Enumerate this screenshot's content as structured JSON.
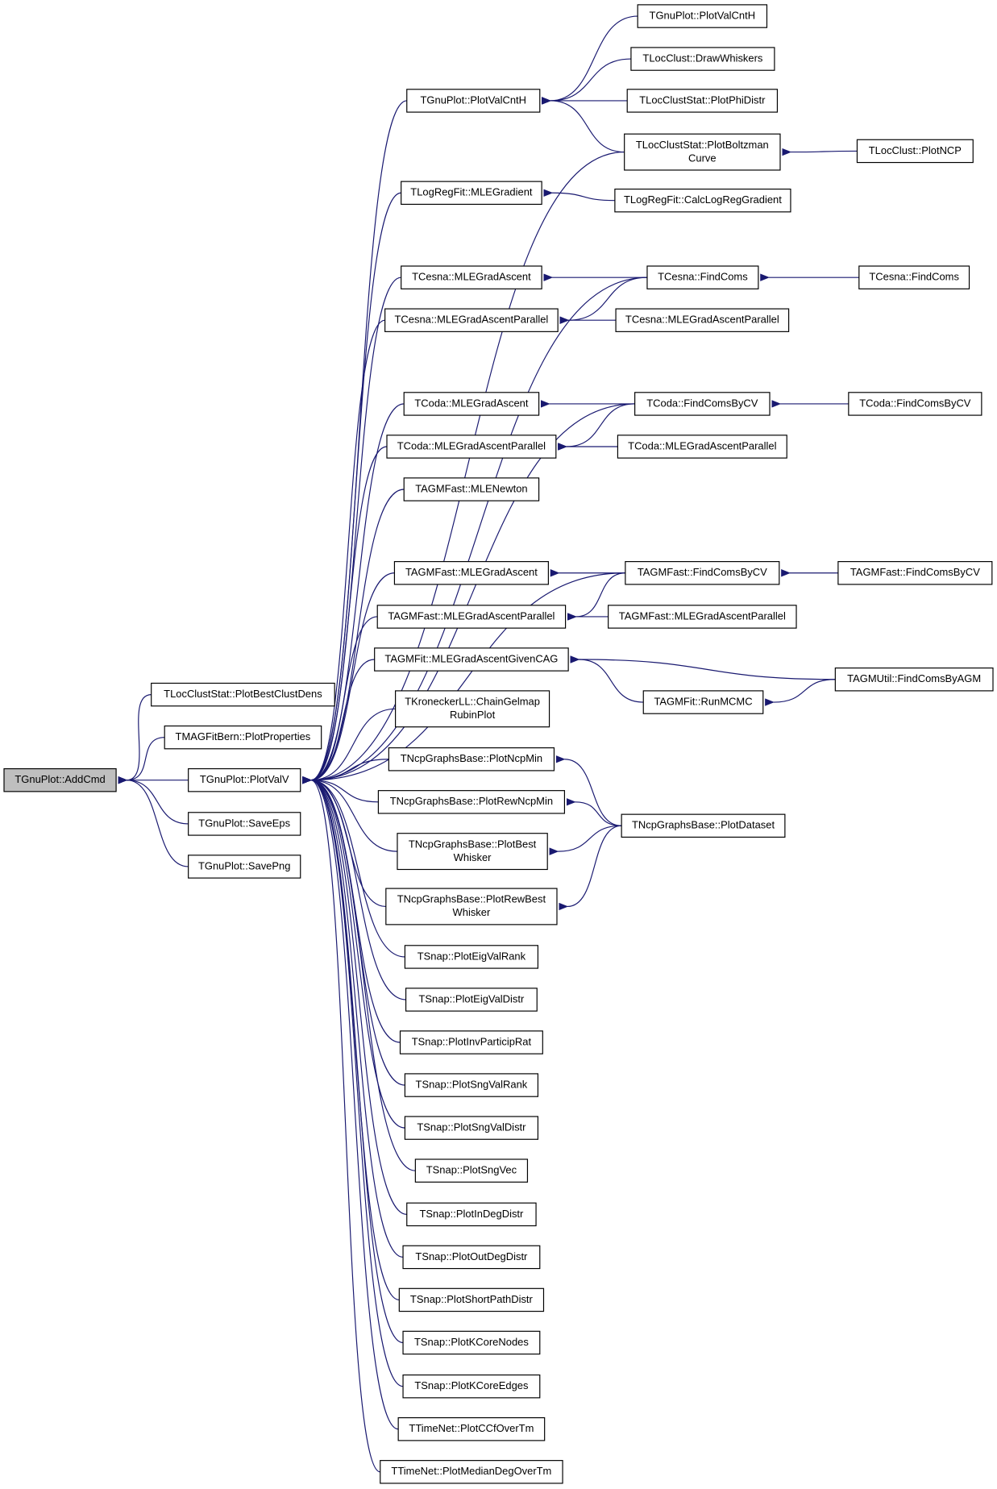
{
  "nodes": [
    {
      "lines": [
        "TGnuPlot::AddCmd"
      ]
    },
    {
      "lines": [
        "TLocClustStat::PlotBestClustDens"
      ]
    },
    {
      "lines": [
        "TMAGFitBern::PlotProperties"
      ]
    },
    {
      "lines": [
        "TGnuPlot::PlotValV"
      ]
    },
    {
      "lines": [
        "TGnuPlot::SaveEps"
      ]
    },
    {
      "lines": [
        "TGnuPlot::SavePng"
      ]
    },
    {
      "lines": [
        "TGnuPlot::PlotValCntH"
      ]
    },
    {
      "lines": [
        "TLogRegFit::MLEGradient"
      ]
    },
    {
      "lines": [
        "TCesna::MLEGradAscent"
      ]
    },
    {
      "lines": [
        "TCesna::MLEGradAscentParallel"
      ]
    },
    {
      "lines": [
        "TCoda::MLEGradAscent"
      ]
    },
    {
      "lines": [
        "TCoda::MLEGradAscentParallel"
      ]
    },
    {
      "lines": [
        "TAGMFast::MLENewton"
      ]
    },
    {
      "lines": [
        "TAGMFast::MLEGradAscent"
      ]
    },
    {
      "lines": [
        "TAGMFast::MLEGradAscentParallel"
      ]
    },
    {
      "lines": [
        "TAGMFit::MLEGradAscentGivenCAG"
      ]
    },
    {
      "lines": [
        "TKroneckerLL::ChainGelmap",
        "RubinPlot"
      ]
    },
    {
      "lines": [
        "TNcpGraphsBase::PlotNcpMin"
      ]
    },
    {
      "lines": [
        "TNcpGraphsBase::PlotRewNcpMin"
      ]
    },
    {
      "lines": [
        "TNcpGraphsBase::PlotBest",
        "Whisker"
      ]
    },
    {
      "lines": [
        "TNcpGraphsBase::PlotRewBest",
        "Whisker"
      ]
    },
    {
      "lines": [
        "TSnap::PlotEigValRank"
      ]
    },
    {
      "lines": [
        "TSnap::PlotEigValDistr"
      ]
    },
    {
      "lines": [
        "TSnap::PlotInvParticipRat"
      ]
    },
    {
      "lines": [
        "TSnap::PlotSngValRank"
      ]
    },
    {
      "lines": [
        "TSnap::PlotSngValDistr"
      ]
    },
    {
      "lines": [
        "TSnap::PlotSngVec"
      ]
    },
    {
      "lines": [
        "TSnap::PlotInDegDistr"
      ]
    },
    {
      "lines": [
        "TSnap::PlotOutDegDistr"
      ]
    },
    {
      "lines": [
        "TSnap::PlotShortPathDistr"
      ]
    },
    {
      "lines": [
        "TSnap::PlotKCoreNodes"
      ]
    },
    {
      "lines": [
        "TSnap::PlotKCoreEdges"
      ]
    },
    {
      "lines": [
        "TTimeNet::PlotCCfOverTm"
      ]
    },
    {
      "lines": [
        "TTimeNet::PlotMedianDegOverTm"
      ]
    },
    {
      "lines": [
        "TGnuPlot::PlotValCntH"
      ]
    },
    {
      "lines": [
        "TLocClust::DrawWhiskers"
      ]
    },
    {
      "lines": [
        "TLocClustStat::PlotPhiDistr"
      ]
    },
    {
      "lines": [
        "TLocClustStat::PlotBoltzman",
        "Curve"
      ]
    },
    {
      "lines": [
        "TLocClust::PlotNCP"
      ]
    },
    {
      "lines": [
        "TLogRegFit::CalcLogRegGradient"
      ]
    },
    {
      "lines": [
        "TCesna::FindComs"
      ]
    },
    {
      "lines": [
        "TCesna::FindComs"
      ]
    },
    {
      "lines": [
        "TCesna::MLEGradAscentParallel"
      ]
    },
    {
      "lines": [
        "TCoda::FindComsByCV"
      ]
    },
    {
      "lines": [
        "TCoda::FindComsByCV"
      ]
    },
    {
      "lines": [
        "TCoda::MLEGradAscentParallel"
      ]
    },
    {
      "lines": [
        "TAGMFast::FindComsByCV"
      ]
    },
    {
      "lines": [
        "TAGMFast::FindComsByCV"
      ]
    },
    {
      "lines": [
        "TAGMFast::MLEGradAscentParallel"
      ]
    },
    {
      "lines": [
        "TAGMUtil::FindComsByAGM"
      ]
    },
    {
      "lines": [
        "TAGMFit::RunMCMC"
      ]
    },
    {
      "lines": [
        "TNcpGraphsBase::PlotDataset"
      ]
    }
  ]
}
